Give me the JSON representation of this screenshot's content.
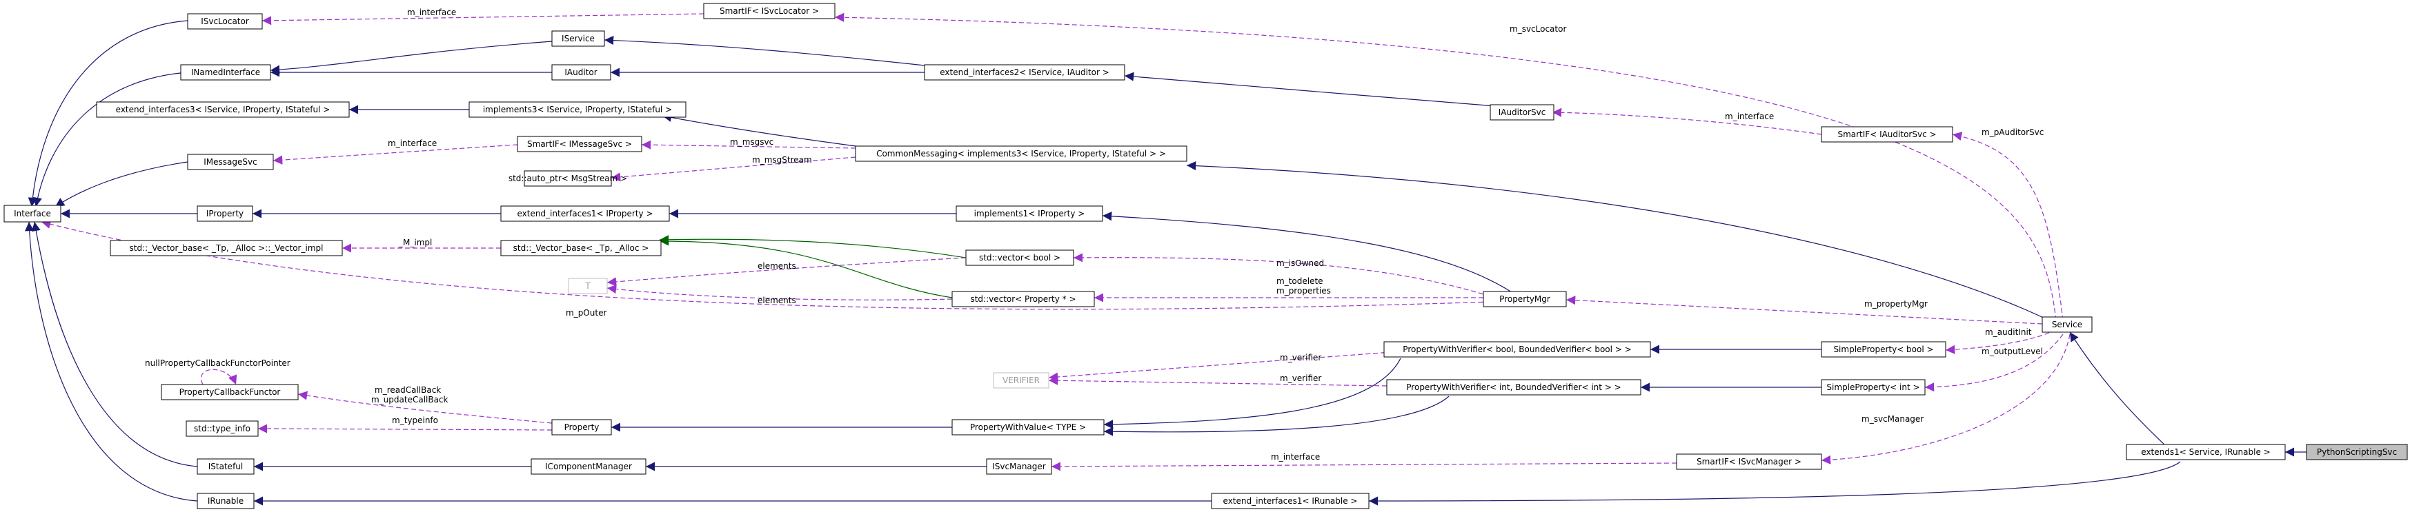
{
  "nodes": {
    "ISvcLocator": "ISvcLocator",
    "INamedInterface": "INamedInterface",
    "extend_interfaces3": "extend_interfaces3< IService, IProperty, IStateful >",
    "IMessageSvc": "IMessageSvc",
    "Interface": "Interface",
    "IProperty": "IProperty",
    "Vector_base_impl": "std::_Vector_base< _Tp, _Alloc >::_Vector_impl",
    "PropertyCallbackFunctor": "PropertyCallbackFunctor",
    "type_info": "std::type_info",
    "IStateful": "IStateful",
    "IRunable": "IRunable",
    "SmartIF_ISvcLocator": "SmartIF< ISvcLocator >",
    "IService": "IService",
    "IAuditor": "IAuditor",
    "implements3": "implements3< IService, IProperty, IStateful >",
    "SmartIF_IMessageSvc": "SmartIF< IMessageSvc >",
    "auto_ptr_MsgStream": "std::auto_ptr< MsgStream >",
    "extend_interfaces1_IProperty": "extend_interfaces1< IProperty >",
    "Vector_base": "std::_Vector_base< _Tp, _Alloc >",
    "T": "T",
    "Property": "Property",
    "IComponentManager": "IComponentManager",
    "extend_interfaces2": "extend_interfaces2< IService, IAuditor >",
    "CommonMessaging": "CommonMessaging< implements3< IService, IProperty, IStateful > >",
    "implements1_IProperty": "implements1< IProperty >",
    "vector_bool": "std::vector< bool >",
    "vector_Property": "std::vector< Property * >",
    "VERIFIER": "VERIFIER",
    "PropertyWithValue": "PropertyWithValue< TYPE >",
    "ISvcManager": "ISvcManager",
    "extend_interfaces1_IRunable": "extend_interfaces1< IRunable >",
    "IAuditorSvc": "IAuditorSvc",
    "PropertyMgr": "PropertyMgr",
    "PWV_bool": "PropertyWithVerifier< bool, BoundedVerifier< bool > >",
    "PWV_int": "PropertyWithVerifier< int, BoundedVerifier< int > >",
    "SmartIF_IAuditorSvc": "SmartIF< IAuditorSvc >",
    "SimpleProperty_bool": "SimpleProperty< bool >",
    "SimpleProperty_int": "SimpleProperty< int >",
    "SmartIF_ISvcManager": "SmartIF< ISvcManager >",
    "Service": "Service",
    "extends1": "extends1< Service, IRunable >",
    "PythonScriptingSvc": "PythonScriptingSvc"
  },
  "edge_labels": {
    "m_interface_svclocator": "m_interface",
    "m_svcLocator": "m_svcLocator",
    "m_interface_msgsvc": "m_interface",
    "m_msgsvc": "m_msgsvc",
    "m_msgStream": "m_msgStream",
    "M_impl": "_M_impl",
    "m_isOwned": "m_isOwned",
    "elements_1": "elements",
    "elements_2": "elements",
    "m_todelete": "m_todelete",
    "m_properties": "m_properties",
    "m_pOuter": "m_pOuter",
    "m_interface_auditorsvc": "m_interface",
    "m_pAuditorSvc": "m_pAuditorSvc",
    "m_propertyMgr": "m_propertyMgr",
    "m_auditInit": "m_auditInit",
    "m_outputLevel": "m_outputLevel",
    "m_verifier_1": "m_verifier",
    "m_verifier_2": "m_verifier",
    "m_svcManager": "m_svcManager",
    "m_interface_svcmanager": "m_interface",
    "nullPropertyCallbackFunctorPointer": "nullPropertyCallbackFunctorPointer",
    "m_readCallBack": "m_readCallBack",
    "m_updateCallBack": "m_updateCallBack",
    "m_typeinfo": "m_typeinfo"
  }
}
